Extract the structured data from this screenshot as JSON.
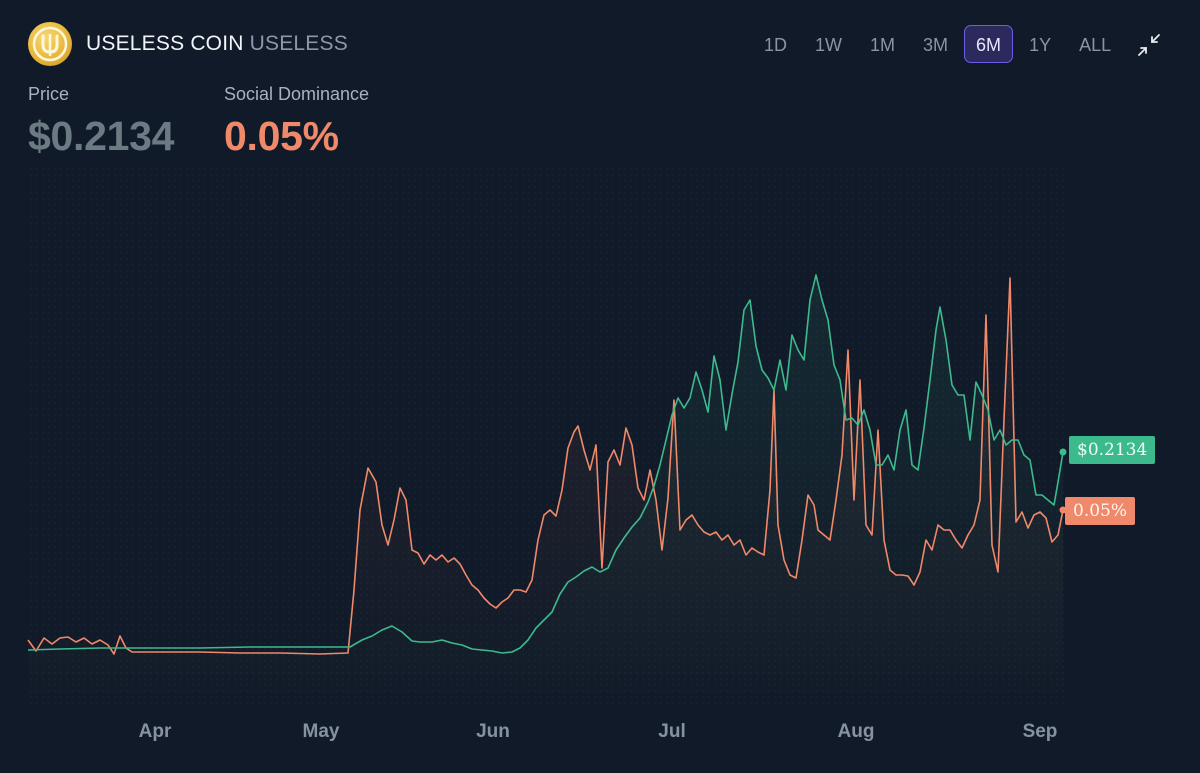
{
  "header": {
    "coin_name": "USELESS COIN",
    "ticker": "USELESS",
    "logo_icon": "useless-coin-logo-icon"
  },
  "periods": [
    {
      "label": "1D",
      "active": false
    },
    {
      "label": "1W",
      "active": false
    },
    {
      "label": "1M",
      "active": false
    },
    {
      "label": "3M",
      "active": false
    },
    {
      "label": "6M",
      "active": true
    },
    {
      "label": "1Y",
      "active": false
    },
    {
      "label": "ALL",
      "active": false
    }
  ],
  "collapse_icon": "collapse-arrows-icon",
  "metrics": {
    "price": {
      "label": "Price",
      "value": "$0.2134"
    },
    "social": {
      "label": "Social Dominance",
      "value": "0.05%"
    }
  },
  "badges": {
    "price": "$0.2134",
    "social": "0.05%"
  },
  "colors": {
    "background": "#111a28",
    "price_line": "#3dba8d",
    "social_line": "#f0896a",
    "active_period": "#6c5ce7"
  },
  "chart_data": {
    "type": "line",
    "x_ticks": [
      "Apr",
      "May",
      "Jun",
      "Jul",
      "Aug",
      "Sep"
    ],
    "series": [
      {
        "name": "Price",
        "points": [
          [
            28,
            650
          ],
          [
            60,
            649
          ],
          [
            100,
            648
          ],
          [
            150,
            648
          ],
          [
            200,
            648
          ],
          [
            250,
            647
          ],
          [
            300,
            647
          ],
          [
            350,
            647
          ],
          [
            362,
            640
          ],
          [
            372,
            636
          ],
          [
            382,
            630
          ],
          [
            392,
            626
          ],
          [
            402,
            632
          ],
          [
            412,
            641
          ],
          [
            420,
            642
          ],
          [
            432,
            642
          ],
          [
            442,
            640
          ],
          [
            452,
            643
          ],
          [
            462,
            645
          ],
          [
            472,
            649
          ],
          [
            482,
            650
          ],
          [
            492,
            651
          ],
          [
            502,
            653
          ],
          [
            512,
            652
          ],
          [
            520,
            648
          ],
          [
            528,
            640
          ],
          [
            536,
            628
          ],
          [
            544,
            620
          ],
          [
            552,
            612
          ],
          [
            560,
            594
          ],
          [
            568,
            582
          ],
          [
            576,
            577
          ],
          [
            584,
            571
          ],
          [
            592,
            567
          ],
          [
            600,
            572
          ],
          [
            608,
            568
          ],
          [
            616,
            550
          ],
          [
            624,
            538
          ],
          [
            632,
            527
          ],
          [
            640,
            518
          ],
          [
            648,
            502
          ],
          [
            654,
            486
          ],
          [
            660,
            465
          ],
          [
            666,
            440
          ],
          [
            672,
            415
          ],
          [
            678,
            398
          ],
          [
            684,
            408
          ],
          [
            690,
            398
          ],
          [
            696,
            372
          ],
          [
            702,
            390
          ],
          [
            708,
            412
          ],
          [
            714,
            356
          ],
          [
            720,
            380
          ],
          [
            726,
            430
          ],
          [
            732,
            394
          ],
          [
            738,
            362
          ],
          [
            744,
            310
          ],
          [
            750,
            300
          ],
          [
            756,
            346
          ],
          [
            762,
            370
          ],
          [
            768,
            378
          ],
          [
            774,
            390
          ],
          [
            780,
            360
          ],
          [
            786,
            390
          ],
          [
            792,
            335
          ],
          [
            798,
            350
          ],
          [
            804,
            360
          ],
          [
            810,
            300
          ],
          [
            816,
            275
          ],
          [
            822,
            300
          ],
          [
            828,
            320
          ],
          [
            834,
            365
          ],
          [
            840,
            380
          ],
          [
            846,
            420
          ],
          [
            852,
            418
          ],
          [
            858,
            425
          ],
          [
            864,
            410
          ],
          [
            870,
            430
          ],
          [
            876,
            465
          ],
          [
            882,
            465
          ],
          [
            888,
            455
          ],
          [
            894,
            470
          ],
          [
            900,
            430
          ],
          [
            906,
            410
          ],
          [
            912,
            465
          ],
          [
            918,
            470
          ],
          [
            924,
            428
          ],
          [
            930,
            380
          ],
          [
            936,
            330
          ],
          [
            940,
            307
          ],
          [
            946,
            340
          ],
          [
            952,
            385
          ],
          [
            958,
            395
          ],
          [
            964,
            395
          ],
          [
            970,
            440
          ],
          [
            976,
            382
          ],
          [
            982,
            395
          ],
          [
            988,
            410
          ],
          [
            994,
            440
          ],
          [
            1000,
            430
          ],
          [
            1006,
            445
          ],
          [
            1012,
            440
          ],
          [
            1018,
            440
          ],
          [
            1024,
            455
          ],
          [
            1030,
            460
          ],
          [
            1036,
            495
          ],
          [
            1042,
            495
          ],
          [
            1048,
            500
          ],
          [
            1054,
            505
          ],
          [
            1058,
            482
          ],
          [
            1063,
            452
          ]
        ]
      },
      {
        "name": "Social Dominance",
        "points": [
          [
            28,
            640
          ],
          [
            36,
            651
          ],
          [
            44,
            638
          ],
          [
            52,
            644
          ],
          [
            60,
            638
          ],
          [
            68,
            637
          ],
          [
            76,
            642
          ],
          [
            84,
            638
          ],
          [
            92,
            644
          ],
          [
            100,
            640
          ],
          [
            108,
            645
          ],
          [
            114,
            654
          ],
          [
            120,
            636
          ],
          [
            126,
            648
          ],
          [
            132,
            652
          ],
          [
            150,
            652
          ],
          [
            200,
            652
          ],
          [
            240,
            653
          ],
          [
            280,
            653
          ],
          [
            320,
            654
          ],
          [
            348,
            653
          ],
          [
            354,
            590
          ],
          [
            360,
            510
          ],
          [
            368,
            468
          ],
          [
            376,
            482
          ],
          [
            382,
            525
          ],
          [
            388,
            545
          ],
          [
            394,
            520
          ],
          [
            400,
            488
          ],
          [
            406,
            500
          ],
          [
            412,
            550
          ],
          [
            418,
            553
          ],
          [
            424,
            564
          ],
          [
            430,
            555
          ],
          [
            436,
            560
          ],
          [
            442,
            555
          ],
          [
            448,
            562
          ],
          [
            454,
            558
          ],
          [
            460,
            564
          ],
          [
            466,
            575
          ],
          [
            472,
            585
          ],
          [
            478,
            590
          ],
          [
            484,
            598
          ],
          [
            490,
            604
          ],
          [
            496,
            608
          ],
          [
            502,
            602
          ],
          [
            508,
            598
          ],
          [
            514,
            590
          ],
          [
            520,
            590
          ],
          [
            526,
            592
          ],
          [
            532,
            580
          ],
          [
            538,
            540
          ],
          [
            544,
            515
          ],
          [
            550,
            510
          ],
          [
            556,
            516
          ],
          [
            562,
            490
          ],
          [
            568,
            448
          ],
          [
            574,
            432
          ],
          [
            578,
            426
          ],
          [
            584,
            450
          ],
          [
            590,
            470
          ],
          [
            596,
            445
          ],
          [
            602,
            568
          ],
          [
            608,
            462
          ],
          [
            614,
            450
          ],
          [
            620,
            465
          ],
          [
            626,
            428
          ],
          [
            632,
            445
          ],
          [
            638,
            488
          ],
          [
            644,
            500
          ],
          [
            650,
            470
          ],
          [
            656,
            500
          ],
          [
            662,
            550
          ],
          [
            668,
            498
          ],
          [
            674,
            400
          ],
          [
            680,
            530
          ],
          [
            686,
            520
          ],
          [
            692,
            515
          ],
          [
            698,
            525
          ],
          [
            704,
            532
          ],
          [
            710,
            535
          ],
          [
            716,
            532
          ],
          [
            722,
            540
          ],
          [
            728,
            535
          ],
          [
            734,
            545
          ],
          [
            740,
            540
          ],
          [
            746,
            555
          ],
          [
            752,
            548
          ],
          [
            758,
            552
          ],
          [
            764,
            555
          ],
          [
            770,
            490
          ],
          [
            774,
            390
          ],
          [
            778,
            525
          ],
          [
            784,
            560
          ],
          [
            790,
            575
          ],
          [
            796,
            578
          ],
          [
            802,
            540
          ],
          [
            808,
            495
          ],
          [
            814,
            505
          ],
          [
            818,
            530
          ],
          [
            824,
            535
          ],
          [
            830,
            540
          ],
          [
            836,
            500
          ],
          [
            842,
            455
          ],
          [
            848,
            350
          ],
          [
            854,
            500
          ],
          [
            860,
            380
          ],
          [
            866,
            525
          ],
          [
            872,
            535
          ],
          [
            878,
            430
          ],
          [
            884,
            540
          ],
          [
            890,
            570
          ],
          [
            896,
            575
          ],
          [
            902,
            575
          ],
          [
            908,
            576
          ],
          [
            914,
            585
          ],
          [
            920,
            572
          ],
          [
            926,
            540
          ],
          [
            932,
            550
          ],
          [
            938,
            525
          ],
          [
            944,
            530
          ],
          [
            950,
            530
          ],
          [
            956,
            540
          ],
          [
            962,
            548
          ],
          [
            968,
            535
          ],
          [
            974,
            525
          ],
          [
            980,
            500
          ],
          [
            986,
            315
          ],
          [
            992,
            545
          ],
          [
            998,
            572
          ],
          [
            1004,
            420
          ],
          [
            1010,
            278
          ],
          [
            1016,
            522
          ],
          [
            1022,
            512
          ],
          [
            1028,
            528
          ],
          [
            1034,
            515
          ],
          [
            1040,
            512
          ],
          [
            1046,
            518
          ],
          [
            1052,
            542
          ],
          [
            1058,
            535
          ],
          [
            1063,
            510
          ]
        ]
      }
    ]
  }
}
